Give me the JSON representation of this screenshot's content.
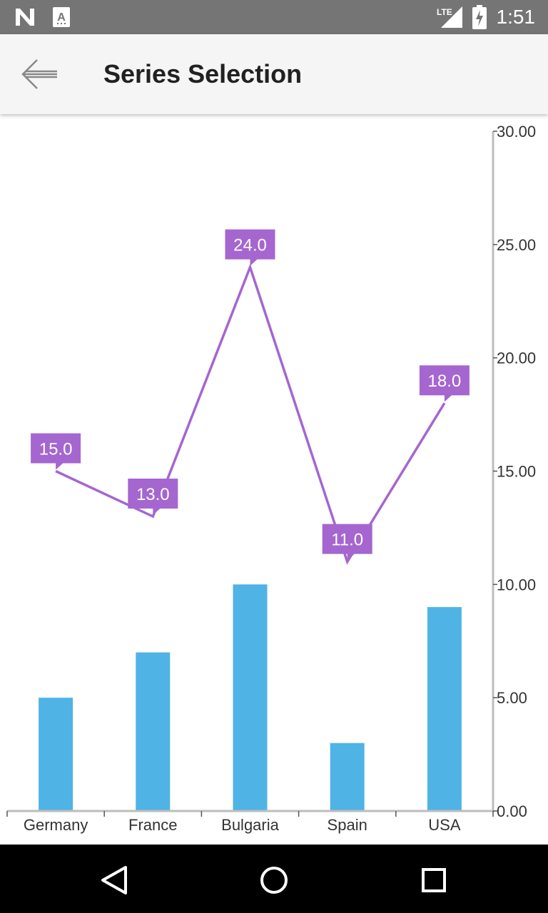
{
  "status_bar": {
    "time": "1:51",
    "network": "LTE",
    "icons": [
      "notification-n-icon",
      "keyboard-a-icon",
      "lte-signal-icon",
      "battery-charging-icon"
    ]
  },
  "app_bar": {
    "title": "Series Selection",
    "back_icon": "arrow-back-icon"
  },
  "colors": {
    "bar": "#4fb3e6",
    "line": "#a566cf",
    "label_bg": "#a566cf",
    "axis": "#bdbdbd"
  },
  "chart_data": {
    "type": "bar+line",
    "categories": [
      "Germany",
      "France",
      "Bulgaria",
      "Spain",
      "USA"
    ],
    "series": [
      {
        "type": "bar",
        "values": [
          5,
          7,
          10,
          3,
          9
        ]
      },
      {
        "type": "line",
        "values": [
          15,
          13,
          24,
          11,
          18
        ],
        "data_labels": [
          "15.0",
          "13.0",
          "24.0",
          "11.0",
          "18.0"
        ]
      }
    ],
    "ylim": [
      0,
      30
    ],
    "yticks": [
      0,
      5,
      10,
      15,
      20,
      25,
      30
    ],
    "ytick_labels": [
      "0.00",
      "5.00",
      "10.00",
      "15.00",
      "20.00",
      "25.00",
      "30.00"
    ],
    "y_axis_position": "right",
    "grid": false
  },
  "nav_bar": {
    "icons": [
      "nav-back-icon",
      "nav-home-icon",
      "nav-recents-icon"
    ]
  }
}
